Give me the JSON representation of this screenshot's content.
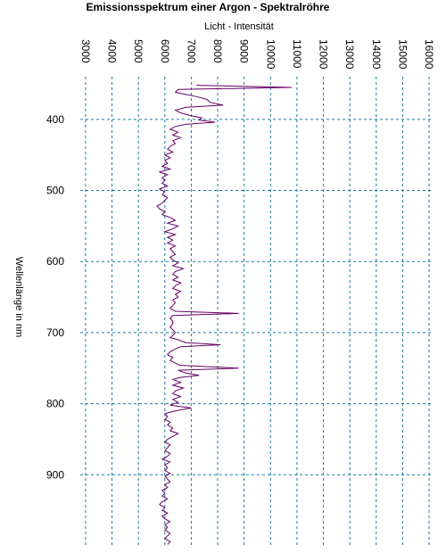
{
  "chart_data": {
    "type": "line",
    "title": "Emissionsspektrum  einer  Argon  -  Spektralröhre",
    "xlabel": "Licht  -  Intensität",
    "ylabel": "Wellenlänge  in  nm",
    "xlim": [
      2800,
      16100
    ],
    "ylim": [
      340,
      1000
    ],
    "xticks": [
      "3000",
      "4000",
      "5000",
      "6000",
      "7000",
      "8000",
      "9000",
      "10000",
      "11000",
      "12000",
      "13000",
      "14000",
      "15000",
      "16000"
    ],
    "yticks": [
      "400",
      "500",
      "600",
      "700",
      "800",
      "900"
    ],
    "grid": true,
    "orientation": "wavelength-vertical",
    "series": [
      {
        "values": [
          [
            352,
            7200
          ],
          [
            355,
            10800
          ],
          [
            358,
            6500
          ],
          [
            362,
            6400
          ],
          [
            365,
            6800
          ],
          [
            368,
            7200
          ],
          [
            372,
            7600
          ],
          [
            376,
            7700
          ],
          [
            380,
            8200
          ],
          [
            383,
            6800
          ],
          [
            387,
            6400
          ],
          [
            391,
            6600
          ],
          [
            395,
            7000
          ],
          [
            398,
            7400
          ],
          [
            401,
            7300
          ],
          [
            404,
            7900
          ],
          [
            407,
            6800
          ],
          [
            410,
            6400
          ],
          [
            414,
            6200
          ],
          [
            418,
            6500
          ],
          [
            422,
            6300
          ],
          [
            426,
            6600
          ],
          [
            430,
            6300
          ],
          [
            434,
            6400
          ],
          [
            438,
            6200
          ],
          [
            442,
            6100
          ],
          [
            446,
            6300
          ],
          [
            450,
            6000
          ],
          [
            454,
            6200
          ],
          [
            458,
            6000
          ],
          [
            462,
            6100
          ],
          [
            466,
            5900
          ],
          [
            470,
            6200
          ],
          [
            474,
            5800
          ],
          [
            478,
            6100
          ],
          [
            482,
            5900
          ],
          [
            486,
            6000
          ],
          [
            490,
            5900
          ],
          [
            494,
            6100
          ],
          [
            498,
            5800
          ],
          [
            502,
            6000
          ],
          [
            506,
            5900
          ],
          [
            510,
            6100
          ],
          [
            514,
            6000
          ],
          [
            518,
            5900
          ],
          [
            522,
            5700
          ],
          [
            526,
            5800
          ],
          [
            530,
            6000
          ],
          [
            534,
            5900
          ],
          [
            538,
            6200
          ],
          [
            542,
            6400
          ],
          [
            546,
            6100
          ],
          [
            550,
            6500
          ],
          [
            554,
            6300
          ],
          [
            558,
            6000
          ],
          [
            562,
            6400
          ],
          [
            566,
            6100
          ],
          [
            570,
            6300
          ],
          [
            574,
            6100
          ],
          [
            578,
            6400
          ],
          [
            582,
            6200
          ],
          [
            586,
            6300
          ],
          [
            590,
            6400
          ],
          [
            594,
            6200
          ],
          [
            598,
            6300
          ],
          [
            602,
            6500
          ],
          [
            606,
            6300
          ],
          [
            610,
            6700
          ],
          [
            614,
            6400
          ],
          [
            618,
            6300
          ],
          [
            622,
            6500
          ],
          [
            626,
            6300
          ],
          [
            630,
            6600
          ],
          [
            634,
            6400
          ],
          [
            638,
            6300
          ],
          [
            642,
            6600
          ],
          [
            646,
            6400
          ],
          [
            650,
            6500
          ],
          [
            654,
            6300
          ],
          [
            658,
            6400
          ],
          [
            662,
            6300
          ],
          [
            666,
            6200
          ],
          [
            670,
            6400
          ],
          [
            673,
            8800
          ],
          [
            676,
            6300
          ],
          [
            680,
            6200
          ],
          [
            684,
            6300
          ],
          [
            688,
            6300
          ],
          [
            692,
            6200
          ],
          [
            696,
            6300
          ],
          [
            700,
            6400
          ],
          [
            704,
            6300
          ],
          [
            707,
            6200
          ],
          [
            710,
            6500
          ],
          [
            714,
            6800
          ],
          [
            717,
            8100
          ],
          [
            720,
            6600
          ],
          [
            723,
            6400
          ],
          [
            727,
            6200
          ],
          [
            731,
            6100
          ],
          [
            735,
            6300
          ],
          [
            739,
            6200
          ],
          [
            743,
            6400
          ],
          [
            746,
            6600
          ],
          [
            750,
            8800
          ],
          [
            753,
            6500
          ],
          [
            757,
            6800
          ],
          [
            760,
            7300
          ],
          [
            763,
            6600
          ],
          [
            766,
            6300
          ],
          [
            770,
            6600
          ],
          [
            774,
            6300
          ],
          [
            778,
            6700
          ],
          [
            782,
            6400
          ],
          [
            786,
            6300
          ],
          [
            790,
            6600
          ],
          [
            794,
            6300
          ],
          [
            798,
            6500
          ],
          [
            802,
            6200
          ],
          [
            806,
            7000
          ],
          [
            810,
            6400
          ],
          [
            814,
            6000
          ],
          [
            818,
            6100
          ],
          [
            822,
            6000
          ],
          [
            826,
            6200
          ],
          [
            830,
            6100
          ],
          [
            834,
            6300
          ],
          [
            838,
            6200
          ],
          [
            842,
            6500
          ],
          [
            846,
            6300
          ],
          [
            850,
            6100
          ],
          [
            854,
            6000
          ],
          [
            858,
            6200
          ],
          [
            862,
            6100
          ],
          [
            866,
            6000
          ],
          [
            870,
            6200
          ],
          [
            874,
            6100
          ],
          [
            878,
            5900
          ],
          [
            882,
            6200
          ],
          [
            886,
            6000
          ],
          [
            890,
            6100
          ],
          [
            894,
            6000
          ],
          [
            898,
            6200
          ],
          [
            902,
            6000
          ],
          [
            906,
            6100
          ],
          [
            910,
            6200
          ],
          [
            914,
            6000
          ],
          [
            918,
            6100
          ],
          [
            922,
            5900
          ],
          [
            926,
            6000
          ],
          [
            930,
            5900
          ],
          [
            934,
            6100
          ],
          [
            938,
            5900
          ],
          [
            942,
            5800
          ],
          [
            946,
            6000
          ],
          [
            950,
            5900
          ],
          [
            954,
            6100
          ],
          [
            958,
            5900
          ],
          [
            962,
            6000
          ],
          [
            966,
            6200
          ],
          [
            970,
            6000
          ],
          [
            974,
            6100
          ],
          [
            978,
            6000
          ],
          [
            982,
            6200
          ],
          [
            986,
            6100
          ],
          [
            990,
            6000
          ],
          [
            994,
            6200
          ],
          [
            998,
            6100
          ]
        ],
        "color": "#660066"
      }
    ],
    "colors": {
      "grid": "#1a7a9a",
      "line": "#660066",
      "text": "#000000"
    }
  }
}
